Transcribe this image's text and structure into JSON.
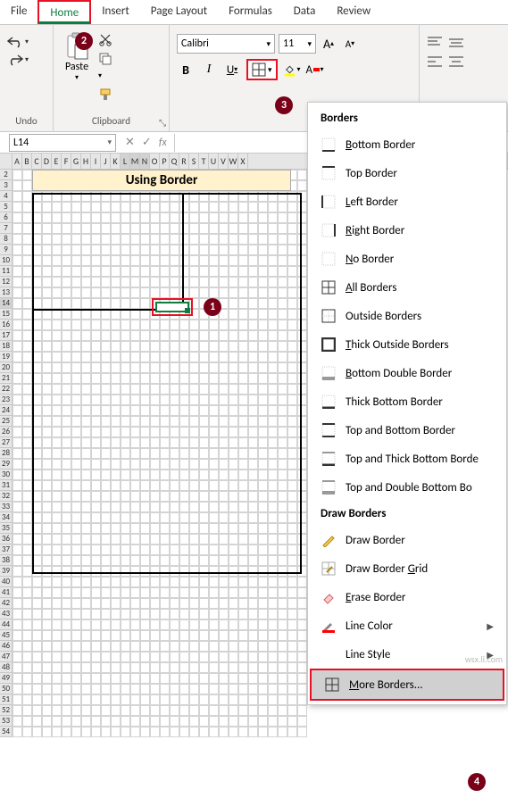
{
  "tabs": {
    "file": "File",
    "home": "Home",
    "insert": "Insert",
    "pagelayout": "Page Layout",
    "formulas": "Formulas",
    "data": "Data",
    "review": "Review"
  },
  "ribbon": {
    "undo_label": "Undo",
    "clipboard_label": "Clipboard",
    "paste_label": "Paste",
    "font_name": "Calibri",
    "font_size": "11",
    "font_label": "F"
  },
  "namebox": "L14",
  "sheet": {
    "title": "Using Border",
    "columns": [
      "A",
      "B",
      "C",
      "D",
      "E",
      "F",
      "G",
      "H",
      "I",
      "J",
      "K",
      "L",
      "M",
      "N",
      "O",
      "P",
      "Q",
      "R",
      "S",
      "T",
      "U",
      "V",
      "W",
      "X"
    ],
    "selected_cols": [
      "L",
      "M",
      "N"
    ],
    "row_start": 2,
    "row_end": 54,
    "selected_row": 14
  },
  "menu": {
    "header1": "Borders",
    "items1": [
      {
        "label": "Bottom Border",
        "accel": "B",
        "icon": "bottom"
      },
      {
        "label": "Top Border",
        "accel": "P",
        "icon": "top"
      },
      {
        "label": "Left Border",
        "accel": "L",
        "icon": "left"
      },
      {
        "label": "Right Border",
        "accel": "R",
        "icon": "right"
      },
      {
        "label": "No Border",
        "accel": "N",
        "icon": "none"
      },
      {
        "label": "All Borders",
        "accel": "A",
        "icon": "all"
      },
      {
        "label": "Outside Borders",
        "accel": "S",
        "icon": "outside"
      },
      {
        "label": "Thick Outside Borders",
        "accel": "T",
        "icon": "thick"
      },
      {
        "label": "Bottom Double Border",
        "accel": "B",
        "icon": "dbl"
      },
      {
        "label": "Thick Bottom Border",
        "accel": "H",
        "icon": "thkb"
      },
      {
        "label": "Top and Bottom Border",
        "accel": "D",
        "icon": "tb"
      },
      {
        "label": "Top and Thick Bottom Border",
        "accel": "C",
        "icon": "ttb",
        "clip": "Top and Thick Bottom Borde"
      },
      {
        "label": "Top and Double Bottom Border",
        "accel": "U",
        "icon": "tdb",
        "clip": "Top and Double Bottom Bo"
      }
    ],
    "header2": "Draw Borders",
    "items2": [
      {
        "label": "Draw Border",
        "accel": "W",
        "icon": "draw"
      },
      {
        "label": "Draw Border Grid",
        "accel": "G",
        "icon": "drawg"
      },
      {
        "label": "Erase Border",
        "accel": "E",
        "icon": "erase"
      },
      {
        "label": "Line Color",
        "accel": "I",
        "icon": "color",
        "sub": true
      },
      {
        "label": "Line Style",
        "accel": "Y",
        "icon": "style",
        "sub": true
      },
      {
        "label": "More Borders...",
        "accel": "M",
        "icon": "more",
        "highlight": true
      }
    ]
  },
  "badges": {
    "b1": "1",
    "b2": "2",
    "b3": "3",
    "b4": "4"
  },
  "colors": {
    "accent": "#107c41",
    "callout_border": "#e81123",
    "badge_bg": "#7a0019",
    "title_bg": "#fff2cc"
  }
}
